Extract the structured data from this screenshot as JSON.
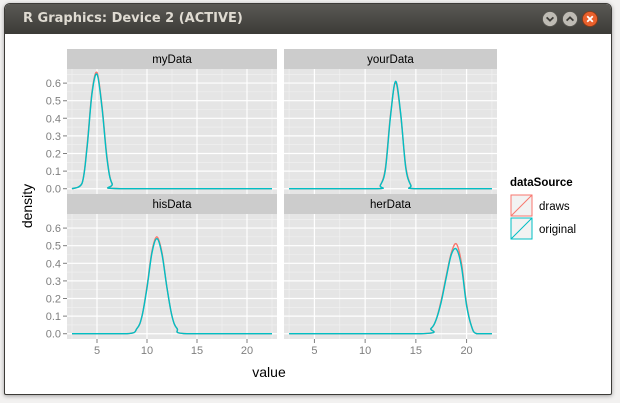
{
  "window": {
    "title": "R Graphics: Device 2 (ACTIVE)",
    "buttons": [
      "minimize-icon",
      "maximize-icon",
      "close-icon"
    ]
  },
  "chart_data": {
    "type": "line",
    "xlabel": "value",
    "ylabel": "density",
    "xlim": [
      2,
      23
    ],
    "ylim": [
      -0.03,
      0.68
    ],
    "x_ticks": [
      5,
      10,
      15,
      20
    ],
    "y_ticks": [
      0.0,
      0.1,
      0.2,
      0.3,
      0.4,
      0.5,
      0.6
    ],
    "grid": true,
    "legend": {
      "title": "dataSource",
      "placement": "right",
      "entries": [
        {
          "name": "draws",
          "color": "#f8766d"
        },
        {
          "name": "original",
          "color": "#00bfc4"
        }
      ]
    },
    "facets": [
      {
        "label": "myData",
        "series": [
          {
            "name": "draws",
            "x": [
              2.5,
              3.5,
              4.0,
              4.5,
              5.0,
              5.5,
              6.0,
              6.5,
              7.5,
              22.5
            ],
            "y": [
              0.0,
              0.03,
              0.24,
              0.55,
              0.66,
              0.47,
              0.18,
              0.03,
              0.0,
              0.0
            ]
          },
          {
            "name": "original",
            "x": [
              2.5,
              3.5,
              4.0,
              4.5,
              5.0,
              5.5,
              6.0,
              6.5,
              7.5,
              22.5
            ],
            "y": [
              0.0,
              0.03,
              0.23,
              0.54,
              0.65,
              0.46,
              0.17,
              0.03,
              0.0,
              0.0
            ]
          }
        ]
      },
      {
        "label": "yourData",
        "series": [
          {
            "name": "draws",
            "x": [
              2.5,
              11.0,
              11.5,
              12.0,
              12.5,
              13.0,
              13.5,
              14.0,
              14.5,
              15.0,
              22.5
            ],
            "y": [
              0.0,
              0.0,
              0.02,
              0.12,
              0.42,
              0.6,
              0.42,
              0.13,
              0.02,
              0.0,
              0.0
            ]
          },
          {
            "name": "original",
            "x": [
              2.5,
              11.0,
              11.5,
              12.0,
              12.5,
              13.0,
              13.5,
              14.0,
              14.5,
              15.0,
              22.5
            ],
            "y": [
              0.0,
              0.0,
              0.02,
              0.11,
              0.41,
              0.61,
              0.43,
              0.12,
              0.02,
              0.0,
              0.0
            ]
          }
        ]
      },
      {
        "label": "hisData",
        "series": [
          {
            "name": "draws",
            "x": [
              2.5,
              8.0,
              9.0,
              9.5,
              10.0,
              10.5,
              11.0,
              11.5,
              12.0,
              12.5,
              13.0,
              14.0,
              22.5
            ],
            "y": [
              0.0,
              0.0,
              0.03,
              0.1,
              0.27,
              0.47,
              0.55,
              0.46,
              0.26,
              0.1,
              0.03,
              0.0,
              0.0
            ]
          },
          {
            "name": "original",
            "x": [
              2.5,
              8.0,
              9.0,
              9.5,
              10.0,
              10.5,
              11.0,
              11.5,
              12.0,
              12.5,
              13.0,
              14.0,
              22.5
            ],
            "y": [
              0.0,
              0.0,
              0.03,
              0.1,
              0.26,
              0.46,
              0.54,
              0.45,
              0.26,
              0.1,
              0.03,
              0.0,
              0.0
            ]
          }
        ]
      },
      {
        "label": "herData",
        "series": [
          {
            "name": "draws",
            "x": [
              2.5,
              15.5,
              16.5,
              17.0,
              17.5,
              18.0,
              18.5,
              19.0,
              19.5,
              20.0,
              20.5,
              21.0,
              22.5
            ],
            "y": [
              0.0,
              0.0,
              0.03,
              0.08,
              0.19,
              0.33,
              0.46,
              0.51,
              0.4,
              0.17,
              0.04,
              0.0,
              0.0
            ]
          },
          {
            "name": "original",
            "x": [
              2.5,
              15.5,
              16.5,
              17.0,
              17.5,
              18.0,
              18.5,
              19.0,
              19.5,
              20.0,
              20.5,
              21.0,
              22.5
            ],
            "y": [
              0.0,
              0.0,
              0.03,
              0.08,
              0.18,
              0.32,
              0.45,
              0.48,
              0.38,
              0.16,
              0.04,
              0.0,
              0.0
            ]
          }
        ]
      }
    ]
  }
}
